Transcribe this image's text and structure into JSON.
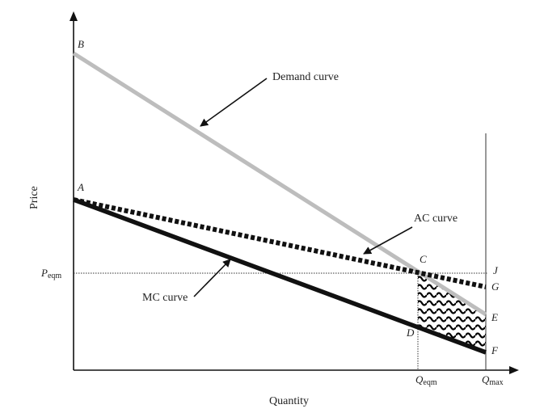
{
  "axes": {
    "ylabel": "Price",
    "xlabel": "Quantity",
    "price_marker": {
      "main": "P",
      "sub": "eqm"
    },
    "q_eqm_marker": {
      "main": "Q",
      "sub": "eqm"
    },
    "q_max_marker": {
      "main": "Q",
      "sub": "max"
    }
  },
  "curves": {
    "demand": {
      "label": "Demand curve",
      "color": "#bdbdbd"
    },
    "ac": {
      "label": "AC curve",
      "color": "#111111"
    },
    "mc": {
      "label": "MC curve",
      "color": "#111111"
    }
  },
  "points": {
    "A": "A",
    "B": "B",
    "C": "C",
    "D": "D",
    "E": "E",
    "F": "F",
    "G": "G",
    "J": "J"
  }
}
